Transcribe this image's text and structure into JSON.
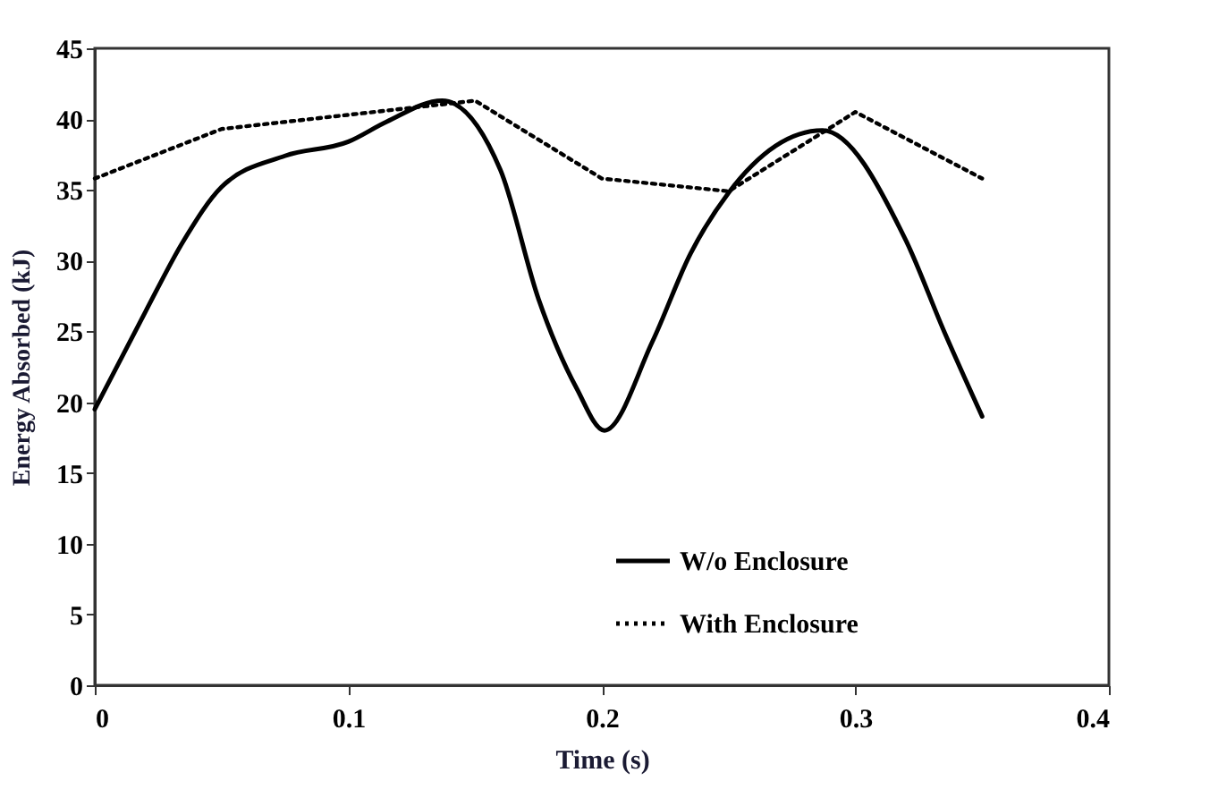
{
  "chart_data": {
    "type": "line",
    "xlabel": "Time (s)",
    "ylabel": "Energy Absorbed (kJ)",
    "xlim": [
      0,
      0.4
    ],
    "xticks": [
      0,
      0.1,
      0.2,
      0.3,
      0.4
    ],
    "ylim": [
      0,
      45
    ],
    "yticks": [
      0,
      5,
      10,
      15,
      20,
      25,
      30,
      35,
      40,
      45
    ],
    "grid": false,
    "legend": "bottom right",
    "marker": "none",
    "series": [
      {
        "name": "W/o Enclosure",
        "color": "#000000",
        "line_style": "solid",
        "x": [
          0,
          0.02,
          0.035,
          0.05,
          0.075,
          0.1,
          0.115,
          0.137,
          0.16,
          0.175,
          0.19,
          0.201,
          0.22,
          0.235,
          0.25,
          0.287,
          0.32,
          0.335,
          0.35
        ],
        "values": [
          19.5,
          26.4,
          31.4,
          35.2,
          37.4,
          38.4,
          39.8,
          41.3,
          36.4,
          27.3,
          21,
          18,
          24.3,
          30.5,
          34.8,
          39.2,
          31.4,
          25,
          19
        ]
      },
      {
        "name": "With Enclosure",
        "color": "#000000",
        "line_style": "dotted",
        "x": [
          0,
          0.05,
          0.1,
          0.15,
          0.2,
          0.25,
          0.3,
          0.35
        ],
        "values": [
          35.8,
          39.3,
          40.3,
          41.3,
          35.8,
          34.9,
          40.5,
          35.8
        ]
      }
    ]
  }
}
